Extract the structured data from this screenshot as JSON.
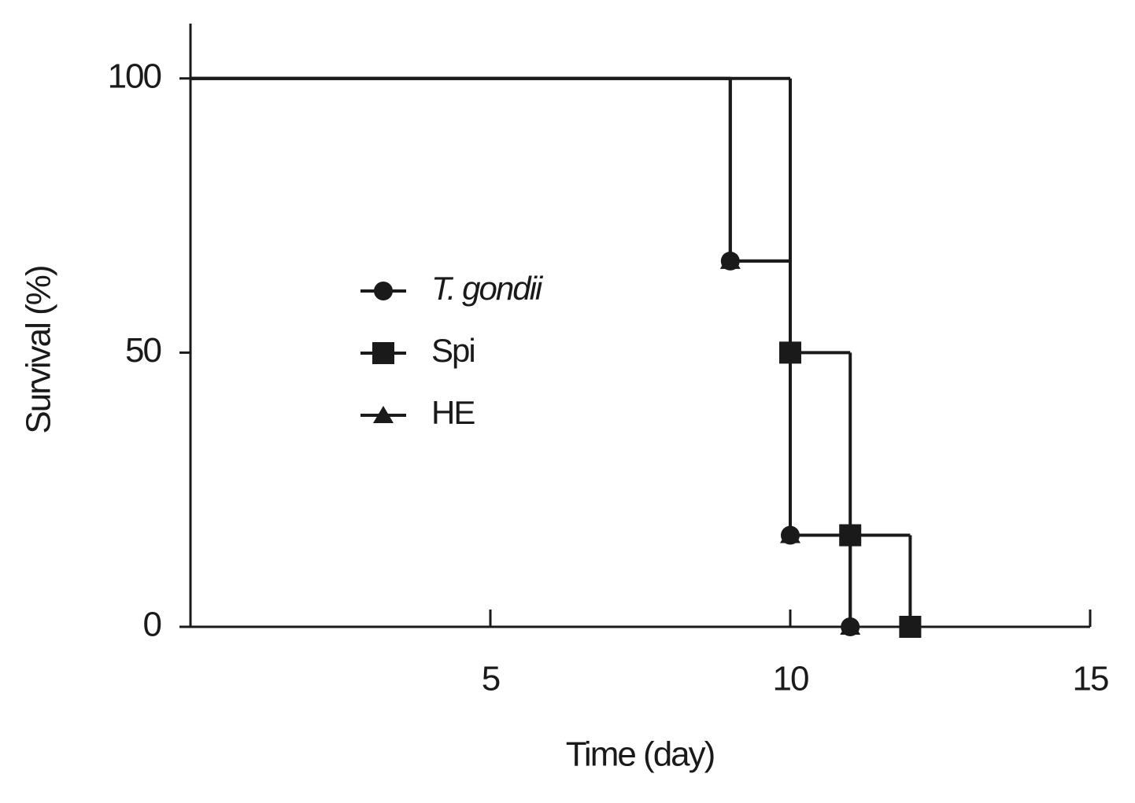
{
  "chart_data": {
    "type": "step",
    "x_label": "Time (day)",
    "y_label": "Survival (%)",
    "xlim": [
      0,
      15
    ],
    "xticks": [
      5,
      10,
      15
    ],
    "ylim": [
      0,
      110
    ],
    "yticks": [
      0,
      50,
      100
    ],
    "legend": "center-left",
    "series": [
      {
        "name": "T. gondii",
        "marker": "circle",
        "color": "#1a1a1a",
        "x": [
          0,
          9,
          10,
          11
        ],
        "values": [
          100,
          66.7,
          16.7,
          0
        ]
      },
      {
        "name": "Spi",
        "marker": "square",
        "color": "#1a1a1a",
        "x": [
          0,
          10,
          11,
          12
        ],
        "values": [
          100,
          50,
          16.7,
          0
        ]
      },
      {
        "name": "HE",
        "marker": "triangle",
        "color": "#1a1a1a",
        "x": [
          0,
          9,
          10,
          11
        ],
        "values": [
          100,
          66.7,
          16.7,
          0
        ]
      }
    ]
  }
}
